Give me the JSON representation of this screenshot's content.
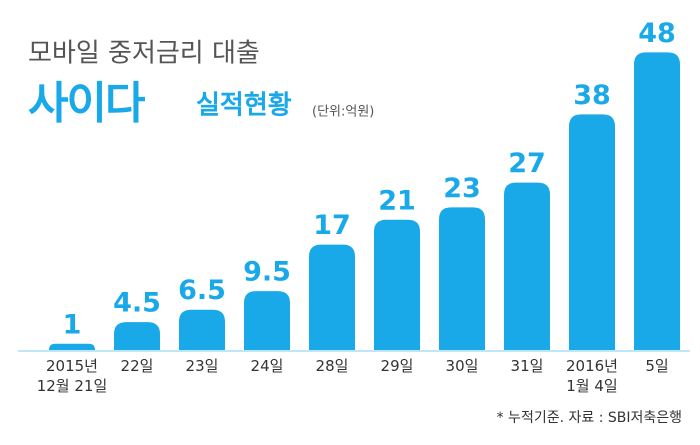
{
  "chart_data": {
    "type": "bar",
    "title": "모바일 중저금리 대출",
    "logo": "사이다",
    "subtitle": "실적현황",
    "unit": "(단위:억원)",
    "note": "* 누적기준. 자료 : SBI저축은행",
    "categories": [
      "2015년\n12월 21일",
      "22일",
      "23일",
      "24일",
      "28일",
      "29일",
      "30일",
      "31일",
      "2016년\n1월 4일",
      "5일"
    ],
    "values": [
      1,
      4.5,
      6.5,
      9.5,
      17,
      21,
      23,
      27,
      38,
      48
    ],
    "color": "#1aa9e8"
  }
}
